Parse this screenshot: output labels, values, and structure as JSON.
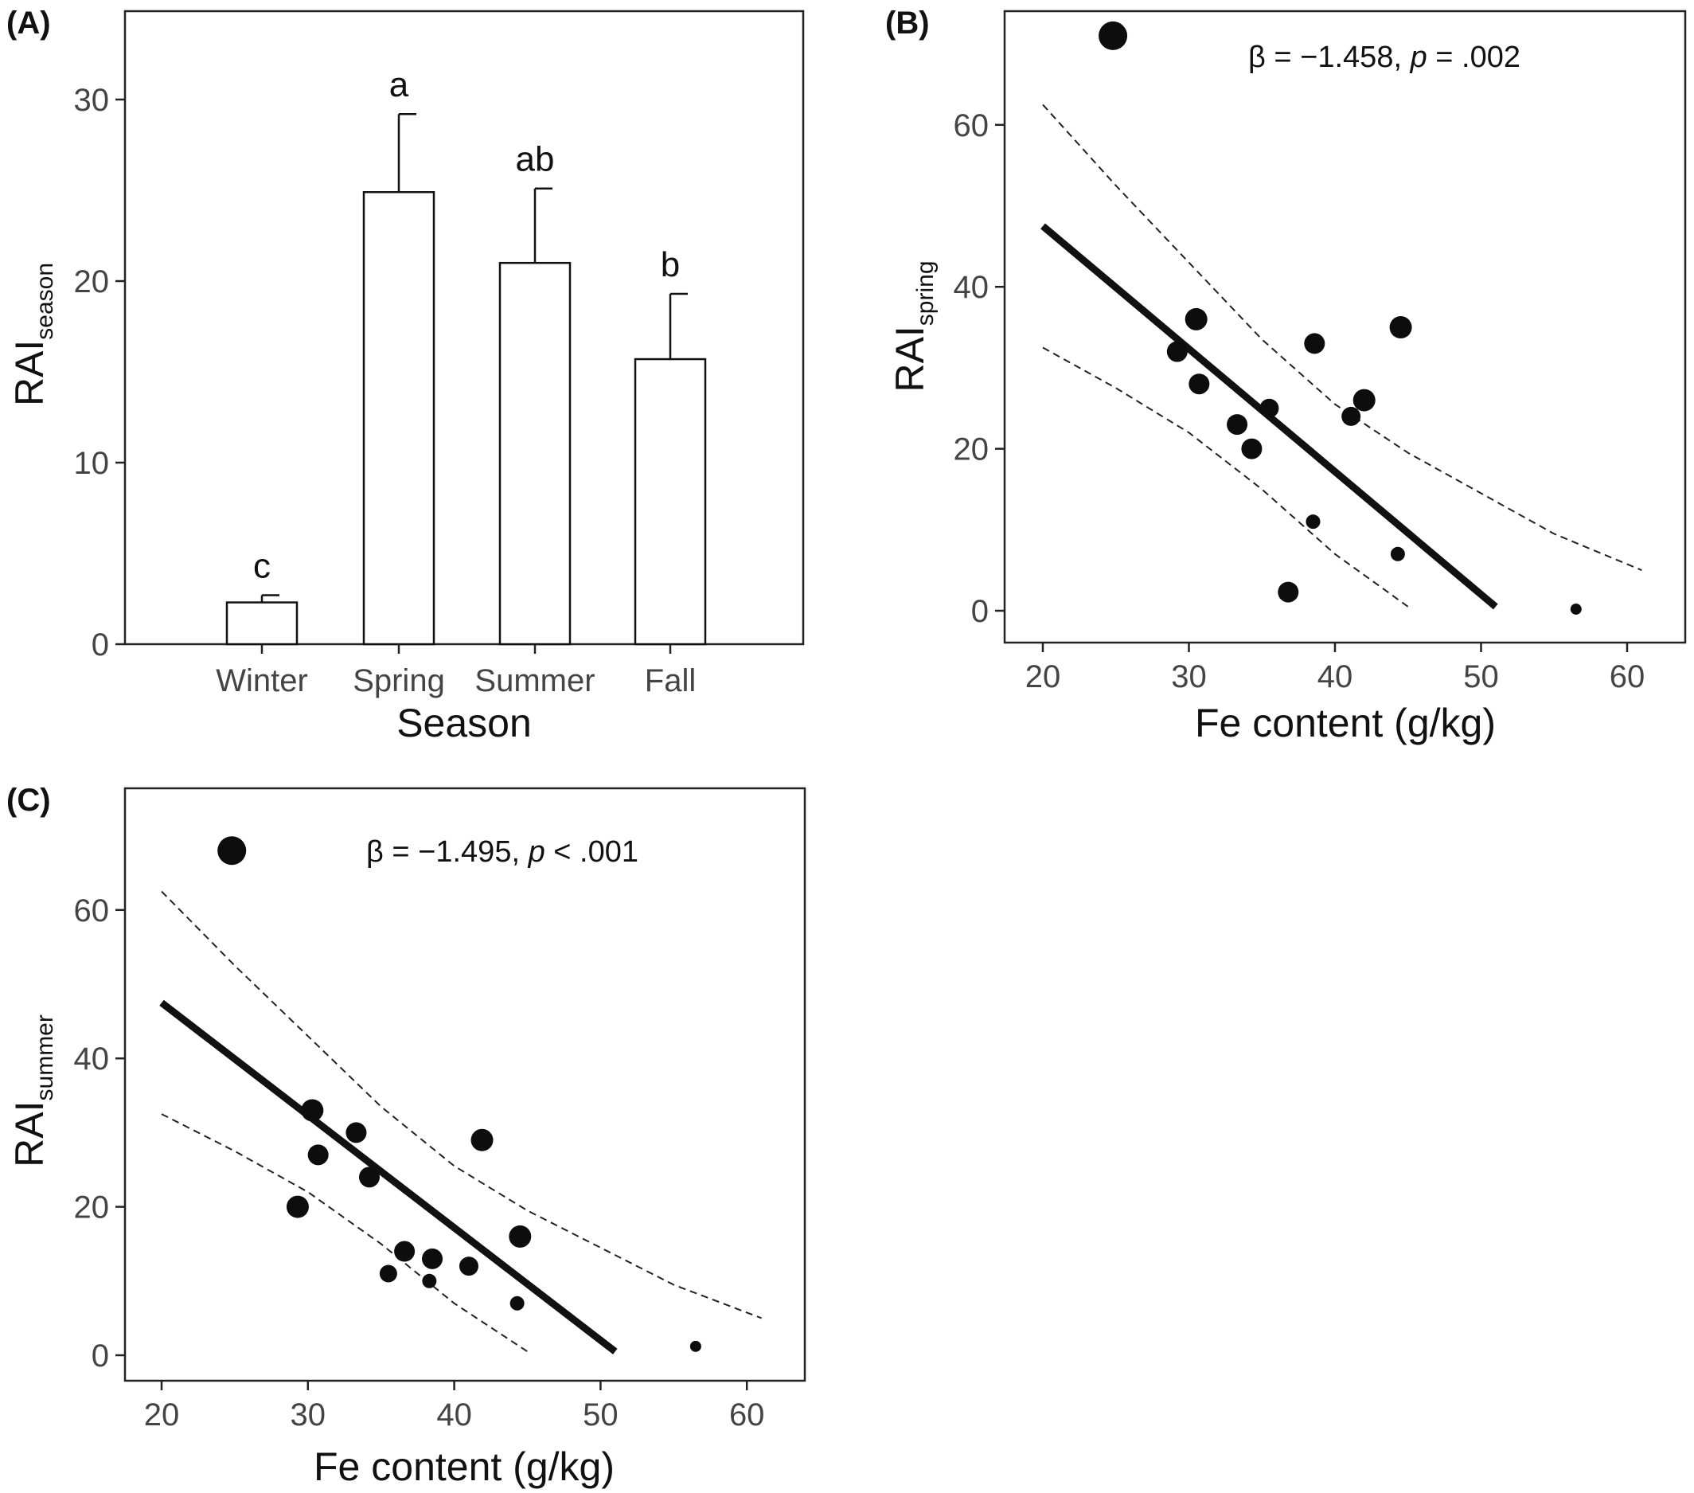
{
  "chart_data": [
    {
      "panel": "(A)",
      "type": "bar",
      "categories": [
        "Winter",
        "Spring",
        "Summer",
        "Fall"
      ],
      "values": [
        2.3,
        24.9,
        21.0,
        15.7
      ],
      "error_upper": [
        2.7,
        29.2,
        25.1,
        19.3
      ],
      "group_letters": [
        "c",
        "a",
        "ab",
        "b"
      ],
      "xlabel": "Season",
      "ylabel_main": "RAI",
      "ylabel_sub": "season",
      "ylim": [
        0,
        35
      ],
      "yticks": [
        0,
        10,
        20,
        30
      ]
    },
    {
      "panel": "(B)",
      "type": "scatter",
      "xlabel": "Fe content (g/kg)",
      "ylabel_main": "RAI",
      "ylabel_sub": "spring",
      "xlim": [
        16.5,
        64
      ],
      "ylim": [
        -4,
        75
      ],
      "xticks": [
        20,
        30,
        40,
        50,
        60
      ],
      "yticks": [
        0,
        20,
        40,
        60
      ],
      "stat_beta": "β = −1.458, ",
      "stat_p_label": "p",
      "stat_p_value": " = .002",
      "points": [
        {
          "x": 24.8,
          "y": 71,
          "r": 18
        },
        {
          "x": 30.5,
          "y": 36,
          "r": 14
        },
        {
          "x": 29.2,
          "y": 32,
          "r": 13
        },
        {
          "x": 30.7,
          "y": 28,
          "r": 13
        },
        {
          "x": 35.5,
          "y": 25,
          "r": 12
        },
        {
          "x": 33.3,
          "y": 23,
          "r": 13
        },
        {
          "x": 34.3,
          "y": 20,
          "r": 13
        },
        {
          "x": 38.6,
          "y": 33,
          "r": 13
        },
        {
          "x": 44.5,
          "y": 35,
          "r": 14
        },
        {
          "x": 42.0,
          "y": 26,
          "r": 14
        },
        {
          "x": 41.1,
          "y": 24,
          "r": 12
        },
        {
          "x": 38.5,
          "y": 11,
          "r": 9
        },
        {
          "x": 44.3,
          "y": 7,
          "r": 9
        },
        {
          "x": 36.8,
          "y": 2.3,
          "r": 13
        },
        {
          "x": 56.5,
          "y": 0.2,
          "r": 7
        }
      ],
      "fit_line": {
        "x": [
          20,
          51
        ],
        "y": [
          47.5,
          0.5
        ]
      },
      "ci_lower": {
        "x": [
          20,
          25,
          30,
          35,
          40,
          45
        ],
        "y": [
          32.5,
          27.5,
          22,
          15,
          7,
          0.5
        ]
      },
      "ci_upper": {
        "x": [
          20,
          25,
          30,
          35,
          40,
          45,
          50,
          55,
          61
        ],
        "y": [
          62.5,
          52.5,
          43,
          33.5,
          25.5,
          19.5,
          14.5,
          9.5,
          5
        ]
      }
    },
    {
      "panel": "(C)",
      "type": "scatter",
      "xlabel": "Fe content (g/kg)",
      "ylabel_main": "RAI",
      "ylabel_sub": "summer",
      "xlim": [
        16.5,
        64
      ],
      "ylim": [
        -4,
        75
      ],
      "xticks": [
        20,
        30,
        40,
        50,
        60
      ],
      "yticks": [
        0,
        20,
        40,
        60
      ],
      "stat_beta": "β = −1.495, ",
      "stat_p_label": "p",
      "stat_p_value": " < .001",
      "points": [
        {
          "x": 24.8,
          "y": 68,
          "r": 18
        },
        {
          "x": 30.3,
          "y": 33,
          "r": 14
        },
        {
          "x": 33.3,
          "y": 30,
          "r": 13
        },
        {
          "x": 30.7,
          "y": 27,
          "r": 13
        },
        {
          "x": 34.2,
          "y": 24,
          "r": 13
        },
        {
          "x": 29.3,
          "y": 20,
          "r": 14
        },
        {
          "x": 41.9,
          "y": 29,
          "r": 14
        },
        {
          "x": 44.5,
          "y": 16,
          "r": 14
        },
        {
          "x": 36.6,
          "y": 14,
          "r": 13
        },
        {
          "x": 38.5,
          "y": 13,
          "r": 13
        },
        {
          "x": 41.0,
          "y": 12,
          "r": 12
        },
        {
          "x": 35.5,
          "y": 11,
          "r": 11
        },
        {
          "x": 38.3,
          "y": 10,
          "r": 9
        },
        {
          "x": 44.3,
          "y": 7,
          "r": 9
        },
        {
          "x": 56.5,
          "y": 1.2,
          "r": 7
        }
      ],
      "fit_line": {
        "x": [
          20,
          51
        ],
        "y": [
          47.5,
          0.5
        ]
      },
      "ci_lower": {
        "x": [
          20,
          25,
          30,
          35,
          40,
          45
        ],
        "y": [
          32.5,
          27.5,
          22,
          15,
          7,
          0.5
        ]
      },
      "ci_upper": {
        "x": [
          20,
          25,
          30,
          35,
          40,
          45,
          50,
          55,
          61
        ],
        "y": [
          62.5,
          52.5,
          43,
          33.5,
          25.5,
          19.5,
          14.5,
          9.5,
          5
        ]
      }
    }
  ]
}
